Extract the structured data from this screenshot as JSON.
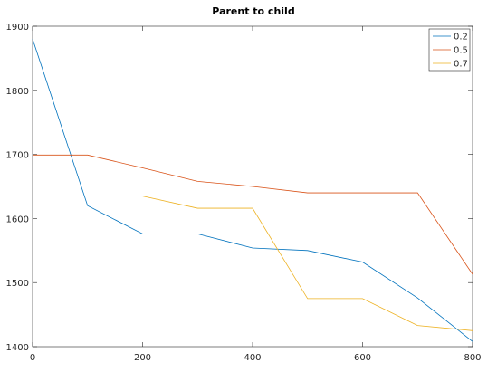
{
  "chart_data": {
    "type": "line",
    "title": "Parent to child",
    "xlabel": "",
    "ylabel": "",
    "xlim": [
      0,
      800
    ],
    "ylim": [
      1400,
      1900
    ],
    "xticks": [
      0,
      200,
      400,
      600,
      800
    ],
    "yticks": [
      1400,
      1500,
      1600,
      1700,
      1800,
      1900
    ],
    "xtick_labels": [
      "0",
      "200",
      "400",
      "600",
      "800"
    ],
    "ytick_labels": [
      "1400",
      "1500",
      "1600",
      "1700",
      "1800",
      "1900"
    ],
    "grid": false,
    "legend_position": "top-right",
    "x": [
      0,
      100,
      200,
      300,
      400,
      500,
      600,
      700,
      800
    ],
    "series": [
      {
        "name": "0.2",
        "color": "#0072bd",
        "values": [
          1880,
          1620,
          1576,
          1576,
          1554,
          1550,
          1532,
          1476,
          1408
        ]
      },
      {
        "name": "0.5",
        "color": "#d95319",
        "values": [
          1699,
          1699,
          1679,
          1658,
          1650,
          1640,
          1640,
          1640,
          1513
        ]
      },
      {
        "name": "0.7",
        "color": "#edb120",
        "values": [
          1635,
          1635,
          1635,
          1616,
          1616,
          1475,
          1475,
          1433,
          1425
        ]
      }
    ]
  }
}
